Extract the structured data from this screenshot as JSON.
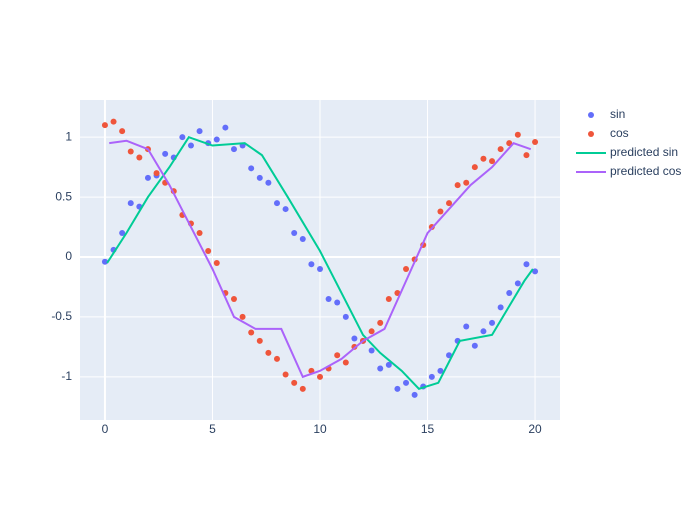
{
  "chart_data": {
    "type": "scatter",
    "xlim": [
      -1.16,
      21.16
    ],
    "ylim": [
      -1.36,
      1.31
    ],
    "xticks": [
      0,
      5,
      10,
      15,
      20
    ],
    "yticks": [
      -1,
      -0.5,
      0,
      0.5,
      1
    ],
    "grid": true,
    "legend": "right",
    "series": [
      {
        "name": "sin",
        "color": "#636efa",
        "mode": "markers",
        "x": [
          0,
          0.4,
          0.8,
          1.2,
          1.6,
          2.0,
          2.4,
          2.8,
          3.2,
          3.6,
          4.0,
          4.4,
          4.8,
          5.2,
          5.6,
          6.0,
          6.4,
          6.8,
          7.2,
          7.6,
          8.0,
          8.4,
          8.8,
          9.2,
          9.6,
          10.0,
          10.4,
          10.8,
          11.2,
          11.6,
          12.0,
          12.4,
          12.8,
          13.2,
          13.6,
          14.0,
          14.4,
          14.8,
          15.2,
          15.6,
          16.0,
          16.4,
          16.8,
          17.2,
          17.6,
          18.0,
          18.4,
          18.8,
          19.2,
          19.6,
          20.0
        ],
        "values": [
          -0.04,
          0.06,
          0.2,
          0.45,
          0.42,
          0.66,
          0.68,
          0.86,
          0.83,
          1.0,
          0.93,
          1.05,
          0.95,
          0.98,
          1.08,
          0.9,
          0.93,
          0.74,
          0.66,
          0.62,
          0.45,
          0.4,
          0.2,
          0.15,
          -0.06,
          -0.1,
          -0.35,
          -0.38,
          -0.5,
          -0.68,
          -0.7,
          -0.78,
          -0.93,
          -0.9,
          -1.1,
          -1.05,
          -1.15,
          -1.08,
          -1.0,
          -0.95,
          -0.82,
          -0.7,
          -0.58,
          -0.74,
          -0.62,
          -0.55,
          -0.42,
          -0.3,
          -0.22,
          -0.06,
          -0.12
        ]
      },
      {
        "name": "cos",
        "color": "#EF553B",
        "mode": "markers",
        "x": [
          0,
          0.4,
          0.8,
          1.2,
          1.6,
          2.0,
          2.4,
          2.8,
          3.2,
          3.6,
          4.0,
          4.4,
          4.8,
          5.2,
          5.6,
          6.0,
          6.4,
          6.8,
          7.2,
          7.6,
          8.0,
          8.4,
          8.8,
          9.2,
          9.6,
          10.0,
          10.4,
          10.8,
          11.2,
          11.6,
          12.0,
          12.4,
          12.8,
          13.2,
          13.6,
          14.0,
          14.4,
          14.8,
          15.2,
          15.6,
          16.0,
          16.4,
          16.8,
          17.2,
          17.6,
          18.0,
          18.4,
          18.8,
          19.2,
          19.6,
          20.0
        ],
        "values": [
          1.1,
          1.13,
          1.05,
          0.88,
          0.83,
          0.9,
          0.7,
          0.62,
          0.55,
          0.35,
          0.28,
          0.2,
          0.05,
          -0.05,
          -0.3,
          -0.35,
          -0.5,
          -0.63,
          -0.7,
          -0.8,
          -0.85,
          -0.98,
          -1.05,
          -1.1,
          -0.95,
          -1.0,
          -0.93,
          -0.82,
          -0.88,
          -0.75,
          -0.7,
          -0.62,
          -0.55,
          -0.35,
          -0.3,
          -0.1,
          -0.02,
          0.1,
          0.25,
          0.38,
          0.45,
          0.6,
          0.62,
          0.75,
          0.82,
          0.8,
          0.9,
          0.95,
          1.02,
          0.85,
          0.96
        ]
      },
      {
        "name": "predicted sin",
        "color": "#00cc96",
        "mode": "lines",
        "x": [
          0.1,
          1,
          2,
          3,
          3.9,
          5,
          6.5,
          7.3,
          8.5,
          10,
          11,
          12,
          12.8,
          13.8,
          14.6,
          15.5,
          16.5,
          18,
          19.5,
          19.9
        ],
        "values": [
          -0.05,
          0.2,
          0.5,
          0.75,
          1.0,
          0.93,
          0.95,
          0.85,
          0.5,
          0.05,
          -0.3,
          -0.65,
          -0.8,
          -0.95,
          -1.1,
          -1.05,
          -0.7,
          -0.65,
          -0.2,
          -0.1
        ]
      },
      {
        "name": "predicted cos",
        "color": "#ab63fa",
        "mode": "lines",
        "x": [
          0.2,
          1,
          2,
          3,
          4,
          5,
          6,
          7,
          8.2,
          9.2,
          10,
          11,
          12,
          13,
          14,
          15,
          16,
          17,
          18,
          19,
          19.8
        ],
        "values": [
          0.95,
          0.97,
          0.9,
          0.6,
          0.25,
          -0.1,
          -0.5,
          -0.6,
          -0.6,
          -1.0,
          -0.95,
          -0.85,
          -0.7,
          -0.6,
          -0.2,
          0.2,
          0.4,
          0.6,
          0.75,
          0.95,
          0.9
        ]
      }
    ]
  }
}
